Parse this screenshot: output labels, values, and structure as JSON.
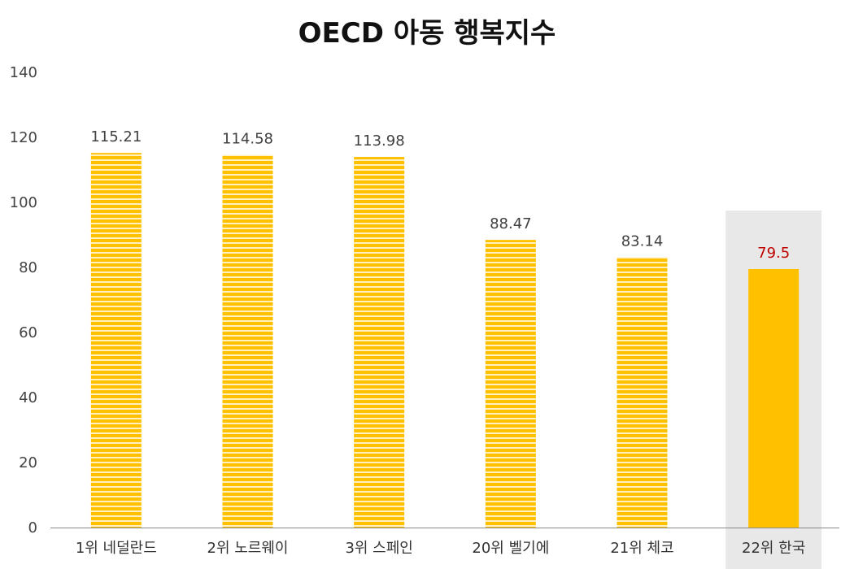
{
  "chart_data": {
    "type": "bar",
    "title": "OECD 아동 행복지수",
    "xlabel": "",
    "ylabel": "",
    "ylim": [
      0,
      140
    ],
    "yticks": [
      0,
      20,
      40,
      60,
      80,
      100,
      120,
      140
    ],
    "grid": false,
    "legend": "none",
    "categories": [
      "1위 네덜란드",
      "2위 노르웨이",
      "3위 스페인",
      "20위 벨기에",
      "21위 체코",
      "22위 한국"
    ],
    "values": [
      115.21,
      114.58,
      113.98,
      88.47,
      83.14,
      79.5
    ],
    "value_labels": [
      "115.21",
      "114.58",
      "113.98",
      "88.47",
      "83.14",
      "79.5"
    ],
    "highlight_index": 5,
    "colors": {
      "bar": "#ffc000",
      "bar_stripe": "#fff1bf",
      "highlight_bar": "#ffc000",
      "highlight_background": "#e8e8e8",
      "highlight_label": "#c00000",
      "label": "#404040",
      "axis": "#888888"
    }
  }
}
